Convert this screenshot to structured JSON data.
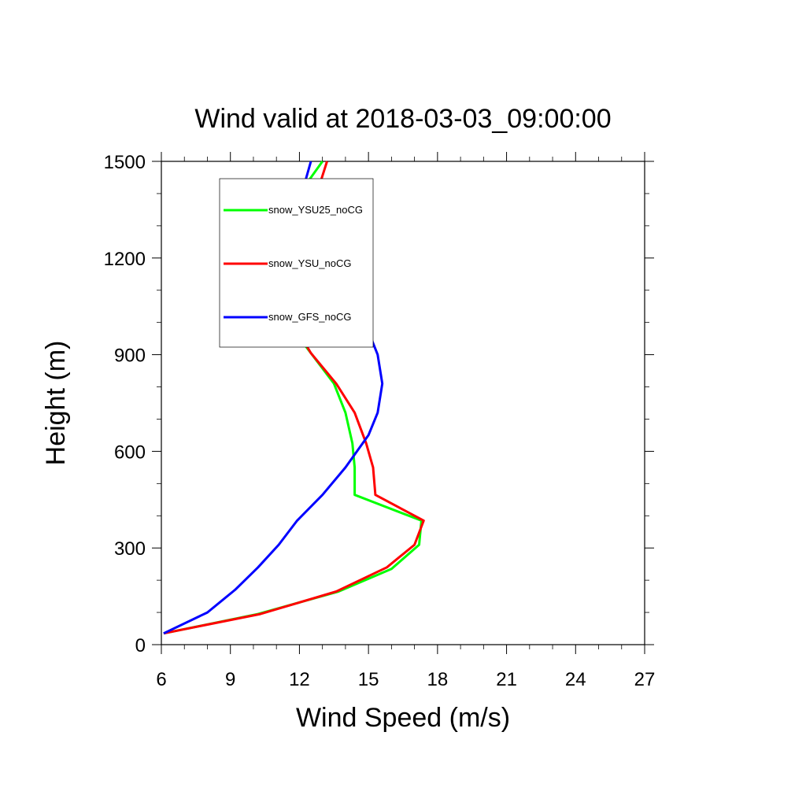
{
  "chart_data": {
    "type": "line",
    "title": "Wind valid at 2018-03-03_09:00:00",
    "xlabel": "Wind Speed (m/s)",
    "ylabel": "Height (m)",
    "xlim": [
      6,
      27
    ],
    "ylim": [
      0,
      1500
    ],
    "x_ticks": [
      "6",
      "9",
      "12",
      "15",
      "18",
      "21",
      "24",
      "27"
    ],
    "y_ticks": [
      "0",
      "300",
      "600",
      "900",
      "1200",
      "1500"
    ],
    "grid": false,
    "legend_position": "upper-left inside",
    "series": [
      {
        "name": "snow_YSU25_noCG",
        "color": "#00ff00",
        "points": [
          [
            6.1,
            35
          ],
          [
            10.2,
            95
          ],
          [
            13.7,
            165
          ],
          [
            16.0,
            235
          ],
          [
            17.2,
            310
          ],
          [
            17.3,
            385
          ],
          [
            14.4,
            465
          ],
          [
            14.4,
            550
          ],
          [
            14.3,
            625
          ],
          [
            14.0,
            720
          ],
          [
            13.5,
            810
          ],
          [
            12.5,
            905
          ],
          [
            11.6,
            990
          ],
          [
            11.0,
            1085
          ],
          [
            10.6,
            1200
          ],
          [
            11.0,
            1295
          ],
          [
            12.2,
            1420
          ],
          [
            13.0,
            1500
          ]
        ]
      },
      {
        "name": "snow_YSU_noCG",
        "color": "#ff0000",
        "points": [
          [
            6.1,
            35
          ],
          [
            10.3,
            95
          ],
          [
            13.6,
            165
          ],
          [
            15.8,
            240
          ],
          [
            17.0,
            310
          ],
          [
            17.4,
            385
          ],
          [
            15.3,
            465
          ],
          [
            15.2,
            550
          ],
          [
            14.9,
            625
          ],
          [
            14.4,
            720
          ],
          [
            13.6,
            810
          ],
          [
            12.5,
            905
          ],
          [
            11.8,
            990
          ],
          [
            11.3,
            1085
          ],
          [
            11.1,
            1200
          ],
          [
            11.5,
            1295
          ],
          [
            12.8,
            1410
          ],
          [
            13.2,
            1500
          ]
        ]
      },
      {
        "name": "snow_GFS_noCG",
        "color": "#0000ff",
        "points": [
          [
            6.1,
            35
          ],
          [
            8.0,
            100
          ],
          [
            9.2,
            170
          ],
          [
            10.2,
            240
          ],
          [
            11.1,
            310
          ],
          [
            11.9,
            385
          ],
          [
            13.0,
            465
          ],
          [
            14.0,
            550
          ],
          [
            15.0,
            650
          ],
          [
            15.4,
            720
          ],
          [
            15.6,
            810
          ],
          [
            15.4,
            900
          ],
          [
            14.9,
            990
          ],
          [
            14.1,
            1085
          ],
          [
            13.1,
            1200
          ],
          [
            12.2,
            1295
          ],
          [
            12.1,
            1400
          ],
          [
            12.5,
            1500
          ]
        ]
      }
    ]
  }
}
